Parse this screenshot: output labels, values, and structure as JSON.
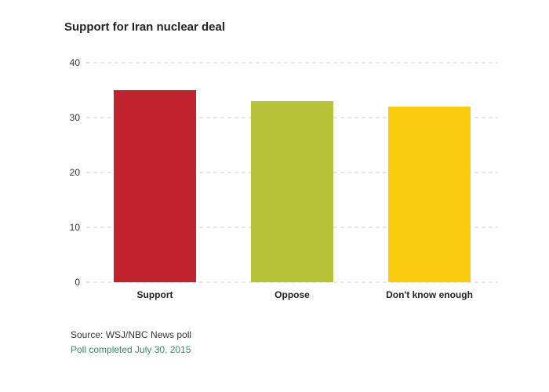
{
  "chart_data": {
    "type": "bar",
    "title": "Support for Iran nuclear deal",
    "categories": [
      "Support",
      "Oppose",
      "Don't know enough"
    ],
    "values": [
      35,
      33,
      32
    ],
    "colors": [
      "#c0222e",
      "#b8c437",
      "#f9cd0e"
    ],
    "ylim": [
      0,
      40
    ],
    "yticks": [
      0,
      10,
      20,
      30,
      40
    ],
    "grid": true,
    "xlabel": "",
    "ylabel": ""
  },
  "footer": {
    "source": "Source: WSJ/NBC News poll",
    "note": "Poll completed July 30, 2015"
  }
}
